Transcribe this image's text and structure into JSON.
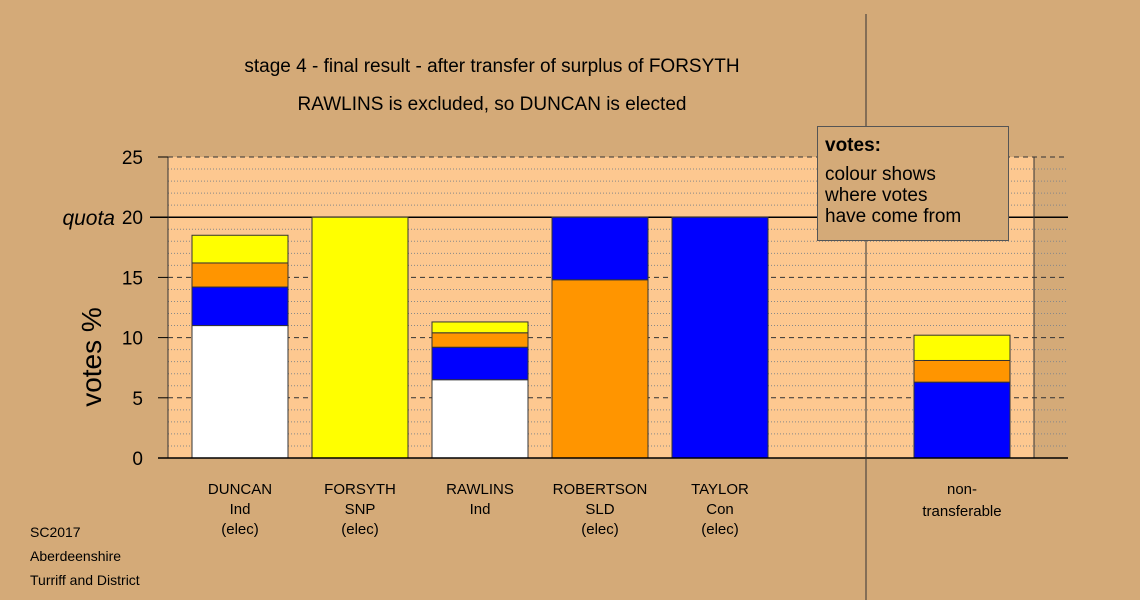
{
  "chart_data": {
    "type": "bar",
    "stacked": true,
    "title": "stage 4 - final result - after transfer of surplus of FORSYTH",
    "subtitle": "RAWLINS is excluded, so DUNCAN is elected",
    "ylabel": "votes %",
    "ylim": [
      0,
      25
    ],
    "yticks": [
      0,
      5,
      10,
      15,
      20,
      25
    ],
    "quota": {
      "label": "quota",
      "value": 20
    },
    "grid": true,
    "categories": [
      {
        "name": "DUNCAN",
        "party": "Ind",
        "status": "(elec)"
      },
      {
        "name": "FORSYTH",
        "party": "SNP",
        "status": "(elec)"
      },
      {
        "name": "RAWLINS",
        "party": "Ind",
        "status": ""
      },
      {
        "name": "ROBERTSON",
        "party": "SLD",
        "status": "(elec)"
      },
      {
        "name": "TAYLOR",
        "party": "Con",
        "status": "(elec)"
      }
    ],
    "segment_colors": {
      "Ind": "#ffffff",
      "Con": "#0000ff",
      "SLD": "#ff9500",
      "SNP": "#ffff00"
    },
    "stacks": [
      [
        {
          "from": "Ind",
          "value": 11.0
        },
        {
          "from": "Con",
          "value": 3.2
        },
        {
          "from": "SLD",
          "value": 2.0
        },
        {
          "from": "SNP",
          "value": 2.3
        }
      ],
      [
        {
          "from": "SNP",
          "value": 20.0
        }
      ],
      [
        {
          "from": "Ind",
          "value": 6.5
        },
        {
          "from": "Con",
          "value": 2.7
        },
        {
          "from": "SLD",
          "value": 1.2
        },
        {
          "from": "SNP",
          "value": 0.9
        }
      ],
      [
        {
          "from": "SLD",
          "value": 14.8
        },
        {
          "from": "Con",
          "value": 5.2
        }
      ],
      [
        {
          "from": "Con",
          "value": 20.0
        }
      ]
    ],
    "non_transferable": {
      "label_line1": "non-",
      "label_line2": "transferable",
      "stack": [
        {
          "from": "Con",
          "value": 6.3
        },
        {
          "from": "SLD",
          "value": 1.8
        },
        {
          "from": "SNP",
          "value": 2.1
        }
      ]
    }
  },
  "legend": {
    "title": "votes:",
    "line1": "colour shows",
    "line2": "where votes",
    "line3": "have come from"
  },
  "footer": {
    "line1": "SC2017",
    "line2": "Aberdeenshire",
    "line3": "Turriff and District"
  },
  "colors": {
    "background": "#d4aa78",
    "plot_area": "#fdc890"
  }
}
